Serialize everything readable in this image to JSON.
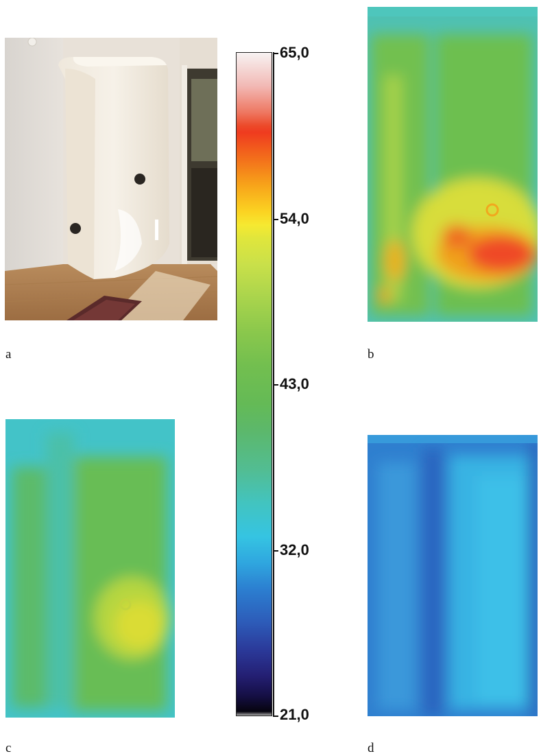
{
  "panels": {
    "a": {
      "label": "a"
    },
    "b": {
      "label": "b"
    },
    "c": {
      "label": "c"
    },
    "d": {
      "label": "d"
    }
  },
  "colorbar": {
    "ticks": [
      "65,0",
      "54,0",
      "43,0",
      "32,0",
      "21,0"
    ],
    "min": 21.0,
    "max": 65.0
  }
}
